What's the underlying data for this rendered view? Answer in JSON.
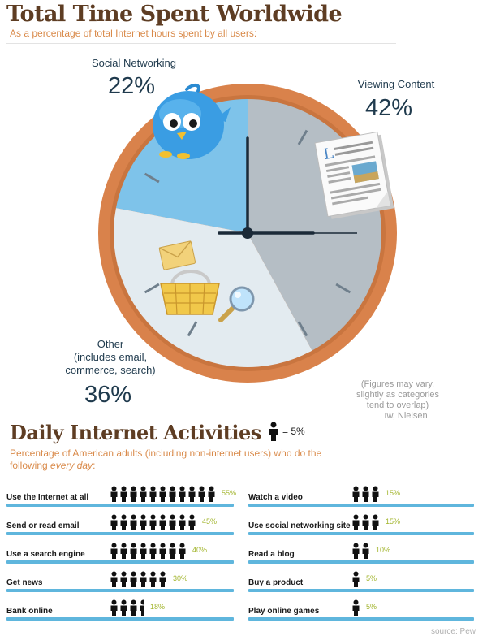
{
  "header": {
    "title": "Total Time Spent Worldwide",
    "subtitle": "As a percentage of total Internet hours spent by all users:"
  },
  "colors": {
    "title_brown": "#5e3d23",
    "accent_orange": "#d98a4a",
    "clock_rim": "#d9824b",
    "slice_social": "#7ec3ea",
    "slice_viewing": "#b5bec5",
    "slice_other": "#e3ebf0",
    "activity_bar": "#5fb6dd",
    "value_green": "#a3b52e"
  },
  "chart_data": [
    {
      "type": "pie",
      "title": "Total Time Spent Worldwide",
      "subtitle": "As a percentage of total Internet hours spent by all users:",
      "slices": [
        {
          "label": "Social Networking",
          "display_label": [
            "Social Networking"
          ],
          "value": 22,
          "display_value": "22%"
        },
        {
          "label": "Viewing Content",
          "display_label": [
            "Viewing Content"
          ],
          "value": 42,
          "display_value": "42%"
        },
        {
          "label": "Other (includes email, commerce, search)",
          "display_label": [
            "Other",
            "(includes email,",
            "commerce, search)"
          ],
          "value": 36,
          "display_value": "36%"
        }
      ],
      "note": [
        "(Figures may vary,",
        "slightly as categories",
        "tend to overlap)",
        "ıw, Nielsen"
      ],
      "icons": [
        "twitter-bird-icon",
        "newspaper-icon",
        "envelope-icon",
        "shopping-basket-icon",
        "magnifier-icon"
      ]
    },
    {
      "type": "bar",
      "title": "Daily Internet Activities",
      "subtitle_parts": [
        "Percentage of American adults (including non-internet users) who do the following ",
        "every day",
        ":"
      ],
      "legend": {
        "icon": "person-icon",
        "label": "= 5%"
      },
      "unit": "%",
      "categories": [
        "Use the Internet at all",
        "Send or read email",
        "Use a search engine",
        "Get news",
        "Bank online",
        "Watch a video",
        "Use social networking site",
        "Read a blog",
        "Buy a product",
        "Play online games"
      ],
      "values": [
        55,
        45,
        40,
        30,
        18,
        15,
        15,
        10,
        5,
        5
      ],
      "value_labels": [
        "55%",
        "45%",
        "40%",
        "30%",
        "18%",
        "15%",
        "15%",
        "10%",
        "5%",
        "5%"
      ]
    }
  ],
  "footer": {
    "source": "source: Pew"
  }
}
